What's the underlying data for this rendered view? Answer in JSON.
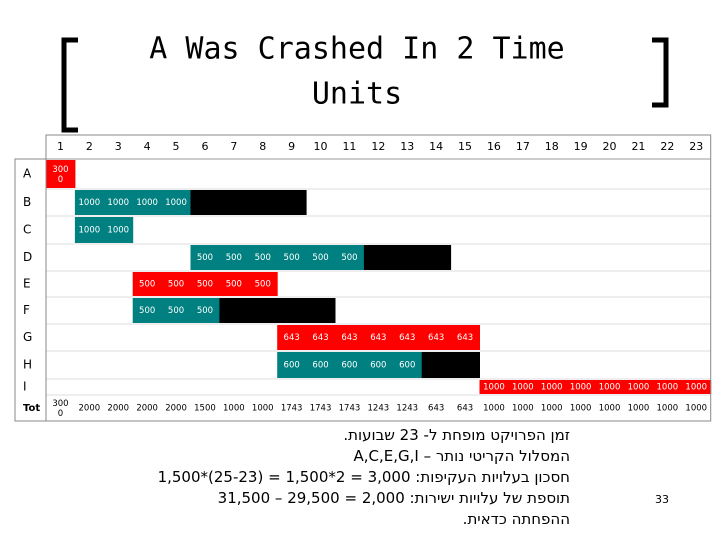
{
  "title": "A Was Crashed In 2 Time Units",
  "table": {
    "columns": [
      1,
      2,
      3,
      4,
      5,
      6,
      7,
      8,
      9,
      10,
      11,
      12,
      13,
      14,
      15,
      16,
      17,
      18,
      19,
      20,
      21,
      22,
      23
    ],
    "rows": [
      {
        "label": "A",
        "cells": [
          3000,
          null,
          null,
          null,
          null,
          null,
          null,
          null,
          null,
          null,
          null,
          null,
          null,
          null,
          null,
          null,
          null,
          null,
          null,
          null,
          null,
          null,
          null
        ],
        "states": [
          "critical",
          null,
          null,
          null,
          null,
          null,
          null,
          null,
          null,
          null,
          null,
          null,
          null,
          null,
          null,
          null,
          null,
          null,
          null,
          null,
          null,
          null,
          null
        ]
      },
      {
        "label": "B",
        "cells": [
          null,
          1000,
          1000,
          1000,
          1000,
          null,
          null,
          null,
          null,
          null,
          null,
          null,
          null,
          null,
          null,
          null,
          null,
          null,
          null,
          null,
          null,
          null,
          null
        ],
        "states": [
          null,
          "active",
          "active",
          "active",
          "active",
          "slack",
          "slack",
          "slack",
          "slack",
          null,
          null,
          null,
          null,
          null,
          null,
          null,
          null,
          null,
          null,
          null,
          null,
          null,
          null
        ]
      },
      {
        "label": "C",
        "cells": [
          null,
          1000,
          1000,
          null,
          null,
          null,
          null,
          null,
          null,
          null,
          null,
          null,
          null,
          null,
          null,
          null,
          null,
          null,
          null,
          null,
          null,
          null,
          null
        ],
        "states": [
          null,
          "active",
          "active",
          null,
          null,
          null,
          null,
          null,
          null,
          null,
          null,
          null,
          null,
          null,
          null,
          null,
          null,
          null,
          null,
          null,
          null,
          null,
          null
        ]
      },
      {
        "label": "D",
        "cells": [
          null,
          null,
          null,
          null,
          null,
          500,
          500,
          500,
          500,
          500,
          500,
          null,
          null,
          null,
          null,
          null,
          null,
          null,
          null,
          null,
          null,
          null,
          null
        ],
        "states": [
          null,
          null,
          null,
          null,
          null,
          "active",
          "active",
          "active",
          "active",
          "active",
          "active",
          "slack",
          "slack",
          "slack",
          null,
          null,
          null,
          null,
          null,
          null,
          null,
          null,
          null
        ]
      },
      {
        "label": "E",
        "cells": [
          null,
          null,
          null,
          500,
          500,
          500,
          500,
          500,
          null,
          null,
          null,
          null,
          null,
          null,
          null,
          null,
          null,
          null,
          null,
          null,
          null,
          null,
          null
        ],
        "states": [
          null,
          null,
          null,
          "critical",
          "critical",
          "critical",
          "critical",
          "critical",
          null,
          null,
          null,
          null,
          null,
          null,
          null,
          null,
          null,
          null,
          null,
          null,
          null,
          null,
          null
        ]
      },
      {
        "label": "F",
        "cells": [
          null,
          null,
          null,
          500,
          500,
          500,
          null,
          null,
          null,
          null,
          null,
          null,
          null,
          null,
          null,
          null,
          null,
          null,
          null,
          null,
          null,
          null,
          null
        ],
        "states": [
          null,
          null,
          null,
          "active",
          "active",
          "active",
          "slack",
          "slack",
          "slack",
          "slack",
          null,
          null,
          null,
          null,
          null,
          null,
          null,
          null,
          null,
          null,
          null,
          null,
          null
        ]
      },
      {
        "label": "G",
        "cells": [
          null,
          null,
          null,
          null,
          null,
          null,
          null,
          null,
          643,
          643,
          643,
          643,
          643,
          643,
          643,
          null,
          null,
          null,
          null,
          null,
          null,
          null,
          null
        ],
        "states": [
          null,
          null,
          null,
          null,
          null,
          null,
          null,
          null,
          "critical",
          "critical",
          "critical",
          "critical",
          "critical",
          "critical",
          "critical",
          null,
          null,
          null,
          null,
          null,
          null,
          null,
          null
        ]
      },
      {
        "label": "H",
        "cells": [
          null,
          null,
          null,
          null,
          null,
          null,
          null,
          null,
          600,
          600,
          600,
          600,
          600,
          null,
          null,
          null,
          null,
          null,
          null,
          null,
          null,
          null,
          null
        ],
        "states": [
          null,
          null,
          null,
          null,
          null,
          null,
          null,
          null,
          "active",
          "active",
          "active",
          "active",
          "active",
          "slack",
          "slack",
          null,
          null,
          null,
          null,
          null,
          null,
          null,
          null
        ]
      },
      {
        "label": "I",
        "cells": [
          null,
          null,
          null,
          null,
          null,
          null,
          null,
          null,
          null,
          null,
          null,
          null,
          null,
          null,
          null,
          1000,
          1000,
          1000,
          1000,
          1000,
          1000,
          1000,
          1000
        ],
        "states": [
          null,
          null,
          null,
          null,
          null,
          null,
          null,
          null,
          null,
          null,
          null,
          null,
          null,
          null,
          null,
          "critical",
          "critical",
          "critical",
          "critical",
          "critical",
          "critical",
          "critical",
          "critical"
        ]
      },
      {
        "label": "Tot",
        "cells": [
          3000,
          2000,
          2000,
          2000,
          2000,
          1500,
          1000,
          1000,
          1743,
          1743,
          1743,
          1243,
          1243,
          643,
          643,
          1000,
          1000,
          1000,
          1000,
          1000,
          1000,
          1000,
          1000
        ],
        "states": [
          null,
          null,
          null,
          null,
          null,
          null,
          null,
          null,
          null,
          null,
          null,
          null,
          null,
          null,
          null,
          null,
          null,
          null,
          null,
          null,
          null,
          null,
          null
        ]
      }
    ]
  },
  "notes": [
    "זמן הפרויקט מופחת ל- 23 שבועות.",
    "המסלול הקריטי נותר – A,C,E,G,I",
    "חסכון בעלויות העקיפות: 3,000 = 2*1,500 = (25-23)*1,500",
    "תוספת של עלויות ישירות: 2,000 = 29,500 – 31,500",
    "ההפחתה כדאית."
  ],
  "page_number": "33"
}
